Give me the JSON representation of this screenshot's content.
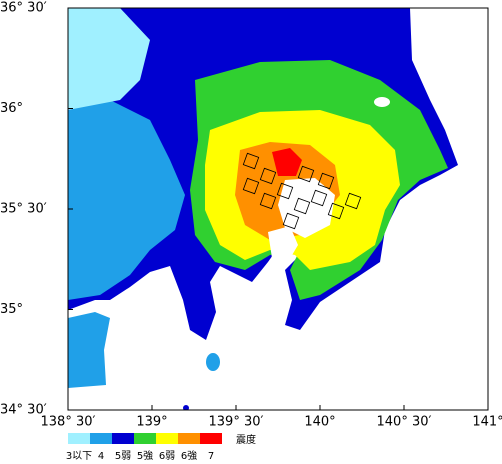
{
  "map": {
    "lonlim": [
      138.5,
      141
    ],
    "latlim": [
      34.5,
      36.5
    ],
    "lat_ticks": [
      {
        "value": 36.5,
        "label": "36° 30′"
      },
      {
        "value": 36,
        "label": "36°"
      },
      {
        "value": 35.5,
        "label": "35° 30′"
      },
      {
        "value": 35,
        "label": "35°"
      },
      {
        "value": 34.5,
        "label": "34° 30′"
      }
    ],
    "lon_ticks": [
      {
        "value": 138.5,
        "label": "138° 30′"
      },
      {
        "value": 139,
        "label": "139°"
      },
      {
        "value": 139.5,
        "label": "139° 30′"
      },
      {
        "value": 140,
        "label": "140°"
      },
      {
        "value": 140.5,
        "label": "140° 30′"
      },
      {
        "value": 141,
        "label": "141°"
      }
    ]
  },
  "legend": {
    "title": "震度",
    "items": [
      {
        "label": "3以下",
        "color": "#a0f0ff"
      },
      {
        "label": "4",
        "color": "#20a0e8"
      },
      {
        "label": "5弱",
        "color": "#0000d0"
      },
      {
        "label": "5強",
        "color": "#30d030"
      },
      {
        "label": "6弱",
        "color": "#ffff00"
      },
      {
        "label": "6強",
        "color": "#ff9000"
      },
      {
        "label": "7",
        "color": "#ff0000"
      }
    ]
  }
}
